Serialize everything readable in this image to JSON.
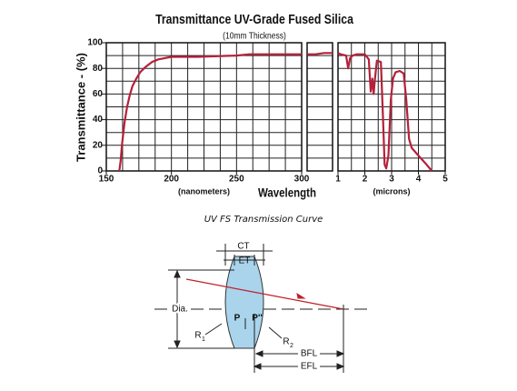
{
  "chart_data": {
    "type": "line",
    "title": "Transmittance UV-Grade Fused Silica",
    "subtitle": "(10mm Thickness)",
    "y_label": "Transmittance - (%)",
    "x_label": "Wavelength",
    "color": "#b5203a",
    "grid": true,
    "ylim": [
      0,
      100
    ],
    "yticks": [
      0,
      20,
      40,
      60,
      80,
      100
    ],
    "ygrid": [
      0,
      10,
      20,
      30,
      40,
      50,
      60,
      70,
      80,
      90,
      100
    ],
    "panels": [
      {
        "unit_label": "(nanometers)",
        "xlim": [
          150,
          300
        ],
        "xticks": [
          150,
          200,
          250,
          300
        ],
        "xgrid": [
          150,
          162.5,
          175,
          187.5,
          200,
          212.5,
          225,
          237.5,
          250,
          262.5,
          275,
          287.5,
          300
        ],
        "x": [
          160,
          161,
          162,
          164,
          166,
          168,
          170,
          173,
          176,
          180,
          185,
          190,
          200,
          220,
          250,
          260,
          280,
          300
        ],
        "values": [
          0,
          8,
          20,
          38,
          50,
          59,
          66,
          72,
          77,
          81,
          85,
          87,
          89,
          89,
          90,
          91,
          91,
          91
        ]
      },
      {
        "values": [
          91,
          91,
          92,
          92
        ]
      },
      {
        "unit_label": "(microns)",
        "xlim": [
          1,
          5
        ],
        "xticks": [
          1,
          2,
          3,
          4,
          5
        ],
        "xgrid": [
          1,
          1.5,
          2,
          2.5,
          3,
          3.5,
          4,
          4.5,
          5
        ],
        "x": [
          1,
          1.1,
          1.3,
          1.38,
          1.45,
          1.55,
          1.7,
          2.0,
          2.15,
          2.22,
          2.28,
          2.33,
          2.38,
          2.45,
          2.6,
          2.68,
          2.74,
          2.8,
          2.88,
          2.97,
          3.05,
          3.15,
          3.3,
          3.45,
          3.55,
          3.65,
          3.75,
          4.0,
          4.3,
          4.5
        ],
        "values": [
          92,
          91,
          90,
          80,
          88,
          90,
          91,
          91,
          87,
          62,
          72,
          60,
          72,
          86,
          85,
          40,
          5,
          2,
          12,
          55,
          72,
          77,
          78,
          76,
          55,
          25,
          18,
          12,
          5,
          0
        ]
      }
    ]
  },
  "caption": "UV FS Transmission Curve",
  "diagram": {
    "ct": "CT",
    "et": "ET",
    "dia": "Dia.",
    "p": "P",
    "p2": "P''",
    "r1": "R",
    "r1_sub": "1",
    "r2": "R",
    "r2_sub": "2",
    "bfl": "BFL",
    "efl": "EFL"
  }
}
